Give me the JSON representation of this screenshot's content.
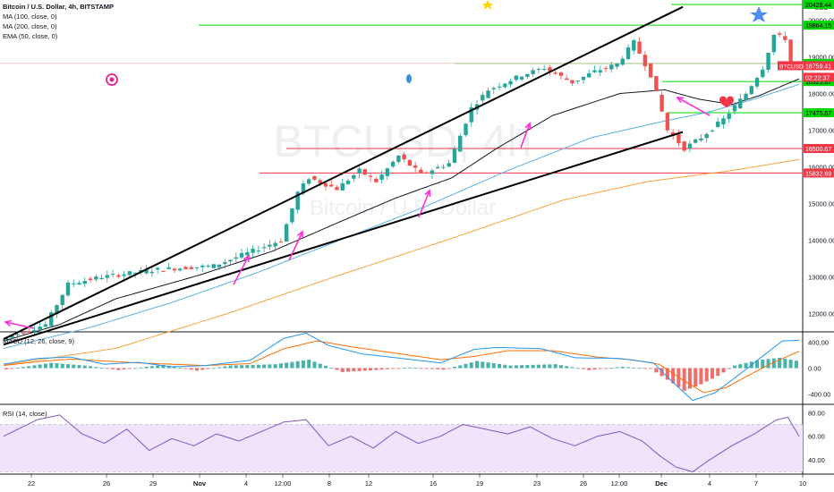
{
  "header": {
    "symbol_title": "Bitcoin / U.S. Dollar, 4h, BITSTAMP",
    "indicators": [
      "MA (100, close, 0)",
      "MA (200, close, 0)",
      "EMA (50, close, 0)"
    ],
    "currency": "USD"
  },
  "watermark": {
    "line1": "BTCUSD, 4h",
    "line2": "Bitcoin / U.S. Dollar"
  },
  "colors": {
    "up": "#26a69a",
    "down": "#ef5350",
    "ma100": "#131722",
    "ma200": "#f7a440",
    "ema50": "#5ab0e5",
    "macd": "#2196f3",
    "signal": "#ff6d00",
    "rsi": "#7e57c2",
    "rsi_band": "#efe4fb",
    "arrow": "#ff2fd6",
    "hline_green": "#00d900",
    "hline_red": "#f23645"
  },
  "chart_data": [
    {
      "type": "candlestick",
      "title": "Bitcoin / U.S. Dollar, 4h, BITSTAMP",
      "x_tick_labels": [
        "22",
        "26",
        "29",
        "Nov",
        "4",
        "12:00",
        "8",
        "12",
        "16",
        "19",
        "23",
        "26",
        "12:00",
        "Dec",
        "4",
        "7",
        "10"
      ],
      "y_axis": {
        "ticks": [
          12000,
          13000,
          14000,
          15000,
          16000,
          17000,
          18000,
          19000,
          20000
        ],
        "ylim": [
          11500,
          20550
        ],
        "currency": "USD"
      },
      "price_path": [
        [
          0,
          11300
        ],
        [
          8,
          11700
        ],
        [
          12,
          12800
        ],
        [
          18,
          13000
        ],
        [
          28,
          13200
        ],
        [
          38,
          13300
        ],
        [
          50,
          14000
        ],
        [
          53,
          15300
        ],
        [
          55,
          15700
        ],
        [
          60,
          15400
        ],
        [
          64,
          15900
        ],
        [
          67,
          15600
        ],
        [
          71,
          16300
        ],
        [
          75,
          15800
        ],
        [
          80,
          16100
        ],
        [
          84,
          17600
        ],
        [
          87,
          18100
        ],
        [
          93,
          18500
        ],
        [
          97,
          18700
        ],
        [
          102,
          18300
        ],
        [
          106,
          18600
        ],
        [
          110,
          18800
        ],
        [
          113,
          19400
        ],
        [
          116,
          18500
        ],
        [
          119,
          17000
        ],
        [
          122,
          16500
        ],
        [
          125,
          16800
        ],
        [
          129,
          17300
        ],
        [
          133,
          18000
        ],
        [
          136,
          18700
        ],
        [
          138,
          19600
        ],
        [
          140,
          19500
        ],
        [
          141,
          18800
        ],
        [
          142,
          18759
        ]
      ],
      "moving_averages": [
        {
          "name": "MA (100, close, 0)",
          "path": [
            [
              0,
              11250
            ],
            [
              10,
              11700
            ],
            [
              20,
              12400
            ],
            [
              35,
              13050
            ],
            [
              48,
              13700
            ],
            [
              60,
              14500
            ],
            [
              70,
              15150
            ],
            [
              80,
              15700
            ],
            [
              88,
              16500
            ],
            [
              98,
              17400
            ],
            [
              110,
              18000
            ],
            [
              118,
              18100
            ],
            [
              124,
              17850
            ],
            [
              130,
              17700
            ],
            [
              135,
              17950
            ],
            [
              142,
              18400
            ]
          ]
        },
        {
          "name": "MA (200, close, 0)",
          "path": [
            [
              0,
              10600
            ],
            [
              20,
              11050
            ],
            [
              40,
              12000
            ],
            [
              60,
              13050
            ],
            [
              80,
              14050
            ],
            [
              100,
              15100
            ],
            [
              115,
              15600
            ],
            [
              130,
              15900
            ],
            [
              142,
              16200
            ]
          ]
        },
        {
          "name": "EMA (50, close, 0)",
          "path": [
            [
              0,
              11050
            ],
            [
              15,
              11600
            ],
            [
              30,
              12300
            ],
            [
              45,
              13100
            ],
            [
              60,
              14000
            ],
            [
              75,
              14900
            ],
            [
              90,
              15900
            ],
            [
              105,
              16800
            ],
            [
              118,
              17250
            ],
            [
              126,
              17500
            ],
            [
              134,
              17850
            ],
            [
              142,
              18250
            ]
          ]
        }
      ],
      "horizontal_levels": [
        {
          "value": 20428.44,
          "label": "20428.44",
          "kind": "green"
        },
        {
          "value": 19864.15,
          "label": "19864.15",
          "kind": "green"
        },
        {
          "value": 18820.36,
          "label": "18820.36",
          "kind": "green"
        },
        {
          "value": 18325.87,
          "label": "18325.87",
          "kind": "green"
        },
        {
          "value": 17475.57,
          "label": "17475.57",
          "kind": "green"
        },
        {
          "value": 16500.67,
          "label": "16500.67",
          "kind": "red"
        },
        {
          "value": 15832.69,
          "label": "15832.69",
          "kind": "red"
        }
      ],
      "price_badges": [
        {
          "label": "BTCUSD",
          "value": "18759.41"
        },
        {
          "label": "",
          "value": "02:22:37"
        }
      ],
      "trendlines": [
        {
          "from": [
            0,
            11300
          ],
          "to": [
            142,
            20850
          ]
        },
        {
          "from": [
            0,
            11150
          ],
          "to": [
            142,
            16950
          ]
        }
      ]
    },
    {
      "type": "bar+line",
      "title": "MACD (12, 26, close, 9)",
      "y_tick_labels": [
        "400.00",
        "0.00",
        "-400.00"
      ],
      "ylim": [
        -560,
        560
      ],
      "histogram_path": [
        [
          0,
          -20
        ],
        [
          8,
          80
        ],
        [
          14,
          40
        ],
        [
          20,
          -30
        ],
        [
          28,
          50
        ],
        [
          34,
          -40
        ],
        [
          40,
          40
        ],
        [
          48,
          60
        ],
        [
          54,
          130
        ],
        [
          60,
          -60
        ],
        [
          66,
          -30
        ],
        [
          72,
          10
        ],
        [
          78,
          -25
        ],
        [
          84,
          110
        ],
        [
          90,
          40
        ],
        [
          98,
          60
        ],
        [
          104,
          -30
        ],
        [
          110,
          20
        ],
        [
          115,
          -10
        ],
        [
          118,
          -180
        ],
        [
          121,
          -350
        ],
        [
          124,
          -250
        ],
        [
          127,
          -120
        ],
        [
          130,
          40
        ],
        [
          134,
          120
        ],
        [
          138,
          160
        ],
        [
          142,
          100
        ]
      ],
      "macd_path": [
        [
          0,
          60
        ],
        [
          6,
          150
        ],
        [
          12,
          170
        ],
        [
          18,
          60
        ],
        [
          24,
          90
        ],
        [
          30,
          20
        ],
        [
          36,
          40
        ],
        [
          44,
          120
        ],
        [
          50,
          460
        ],
        [
          54,
          540
        ],
        [
          58,
          350
        ],
        [
          64,
          220
        ],
        [
          72,
          140
        ],
        [
          78,
          80
        ],
        [
          84,
          290
        ],
        [
          88,
          320
        ],
        [
          96,
          300
        ],
        [
          102,
          160
        ],
        [
          110,
          150
        ],
        [
          116,
          80
        ],
        [
          119,
          -180
        ],
        [
          123,
          -500
        ],
        [
          127,
          -380
        ],
        [
          131,
          -120
        ],
        [
          135,
          150
        ],
        [
          139,
          420
        ],
        [
          142,
          430
        ]
      ],
      "signal_path": [
        [
          0,
          40
        ],
        [
          6,
          100
        ],
        [
          12,
          140
        ],
        [
          18,
          110
        ],
        [
          24,
          80
        ],
        [
          30,
          60
        ],
        [
          36,
          40
        ],
        [
          44,
          70
        ],
        [
          50,
          300
        ],
        [
          56,
          420
        ],
        [
          62,
          330
        ],
        [
          70,
          230
        ],
        [
          78,
          130
        ],
        [
          84,
          180
        ],
        [
          90,
          270
        ],
        [
          98,
          270
        ],
        [
          106,
          170
        ],
        [
          112,
          130
        ],
        [
          117,
          60
        ],
        [
          121,
          -170
        ],
        [
          125,
          -380
        ],
        [
          129,
          -300
        ],
        [
          133,
          -110
        ],
        [
          137,
          70
        ],
        [
          142,
          260
        ]
      ]
    },
    {
      "type": "line",
      "title": "RSI (14, close)",
      "y_tick_labels": [
        "80.00",
        "60.00",
        "40.00"
      ],
      "ylim": [
        28,
        87
      ],
      "band": [
        30,
        70
      ],
      "path": [
        [
          0,
          60
        ],
        [
          6,
          74
        ],
        [
          10,
          78
        ],
        [
          14,
          62
        ],
        [
          18,
          54
        ],
        [
          22,
          66
        ],
        [
          26,
          48
        ],
        [
          30,
          58
        ],
        [
          34,
          52
        ],
        [
          38,
          62
        ],
        [
          42,
          56
        ],
        [
          46,
          64
        ],
        [
          50,
          72
        ],
        [
          54,
          74
        ],
        [
          58,
          52
        ],
        [
          62,
          60
        ],
        [
          66,
          50
        ],
        [
          70,
          64
        ],
        [
          74,
          54
        ],
        [
          78,
          60
        ],
        [
          82,
          70
        ],
        [
          86,
          66
        ],
        [
          90,
          62
        ],
        [
          94,
          68
        ],
        [
          98,
          58
        ],
        [
          102,
          52
        ],
        [
          106,
          60
        ],
        [
          110,
          64
        ],
        [
          114,
          56
        ],
        [
          117,
          44
        ],
        [
          120,
          34
        ],
        [
          123,
          30
        ],
        [
          126,
          40
        ],
        [
          130,
          52
        ],
        [
          134,
          62
        ],
        [
          138,
          74
        ],
        [
          140,
          76
        ],
        [
          142,
          60
        ]
      ]
    }
  ]
}
